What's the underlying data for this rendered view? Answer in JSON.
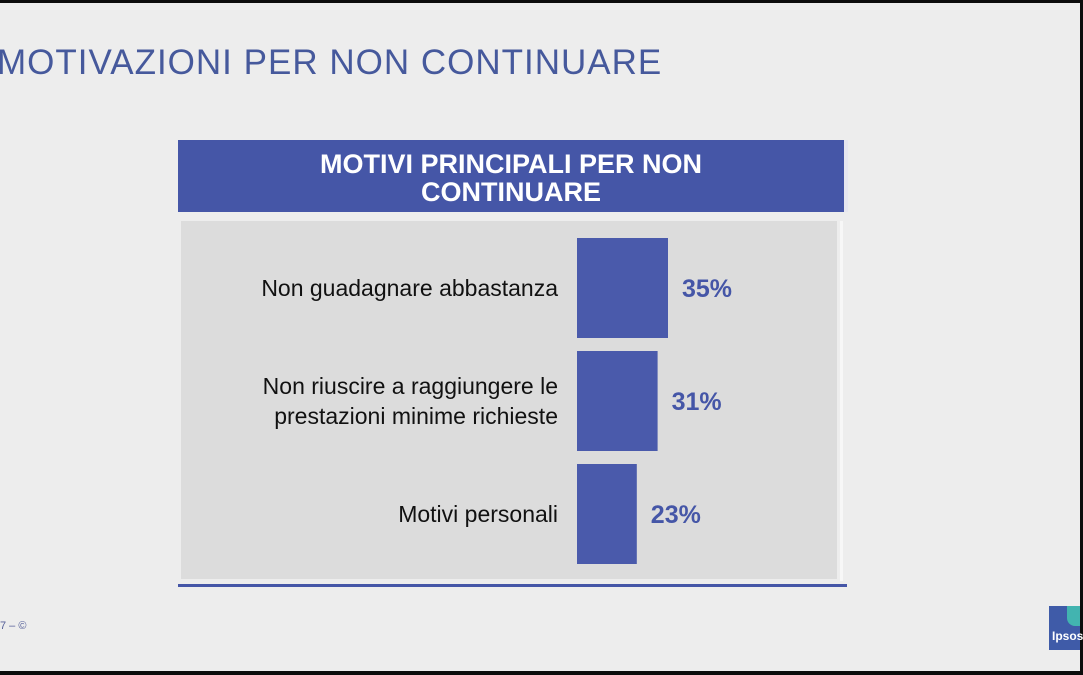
{
  "slide": {
    "title": "MOTIVAZIONI PER NON CONTINUARE",
    "footer": "7 – ©",
    "logo_text": "Ipsos"
  },
  "colors": {
    "accent": "#4556a7",
    "bar": "#4a5aab",
    "value_text": "#4556a7",
    "chart_background": "#dcdcdc"
  },
  "chart_data": {
    "type": "bar",
    "orientation": "horizontal",
    "title": "MOTIVI PRINCIPALI PER NON CONTINUARE",
    "categories": [
      [
        "Non guadagnare abbastanza"
      ],
      [
        "Non riuscire a raggiungere le",
        "prestazioni minime richieste"
      ],
      [
        "Motivi personali"
      ]
    ],
    "values": [
      35,
      31,
      23
    ],
    "value_labels": [
      "35%",
      "31%",
      "23%"
    ],
    "unit": "%",
    "xlim": [
      0,
      100
    ],
    "grid": false,
    "legend": "none"
  }
}
